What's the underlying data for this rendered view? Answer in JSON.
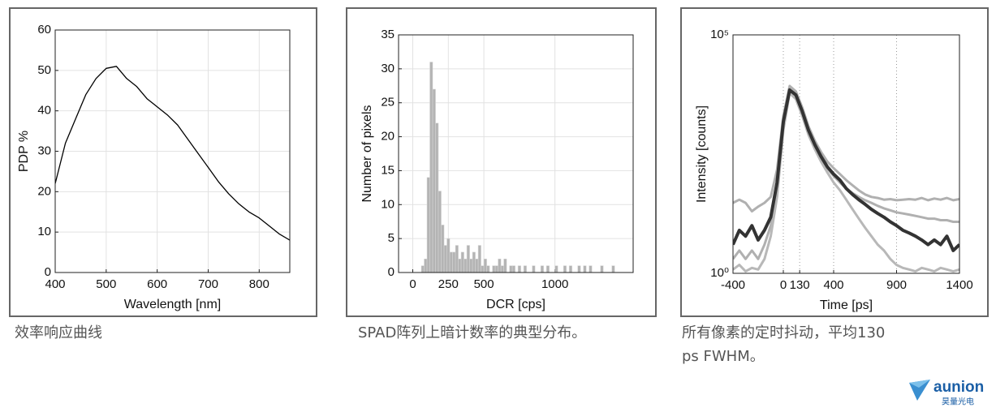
{
  "chart_data": [
    {
      "type": "line",
      "xlabel": "Wavelength [nm]",
      "ylabel": "PDP %",
      "x": [
        400,
        420,
        440,
        460,
        480,
        500,
        520,
        540,
        560,
        580,
        600,
        620,
        640,
        660,
        680,
        700,
        720,
        740,
        760,
        780,
        800,
        820,
        840,
        860
      ],
      "series": [
        {
          "color": "#000000",
          "values": [
            22,
            32,
            38,
            44,
            48,
            50.5,
            51,
            48,
            46,
            43,
            41,
            39,
            36.5,
            33,
            29.5,
            26,
            22.5,
            19.5,
            17,
            15,
            13.5,
            11.5,
            9.5,
            8
          ]
        }
      ],
      "xlim": [
        400,
        860
      ],
      "xticks": [
        400,
        500,
        600,
        700,
        800
      ],
      "ylim": [
        0,
        60
      ],
      "yticks": [
        0,
        10,
        20,
        30,
        40,
        50,
        60
      ],
      "grid": true
    },
    {
      "type": "histogram",
      "xlabel": "DCR [cps]",
      "ylabel": "Number of pixels",
      "color": "#b4b4b4",
      "bins": [
        60,
        80,
        100,
        120,
        140,
        160,
        180,
        200,
        220,
        240,
        260,
        280,
        300,
        320,
        340,
        360,
        380,
        400,
        420,
        440,
        460,
        480,
        500,
        520,
        540,
        560,
        580,
        600,
        620,
        640,
        660,
        680,
        700,
        720,
        740,
        760,
        780,
        800,
        820,
        840,
        860,
        880,
        900,
        920,
        940,
        960,
        980,
        1000,
        1020,
        1040,
        1060,
        1080,
        1100,
        1120,
        1140,
        1160,
        1180,
        1200,
        1220,
        1240,
        1260,
        1280,
        1300,
        1320,
        1340,
        1360,
        1380,
        1400,
        1420
      ],
      "counts": [
        1,
        2,
        14,
        31,
        27,
        22,
        12,
        7,
        4,
        5,
        3,
        3,
        4,
        2,
        3,
        2,
        4,
        2,
        3,
        2,
        4,
        1,
        2,
        1,
        0,
        1,
        1,
        2,
        1,
        2,
        0,
        1,
        1,
        0,
        1,
        0,
        1,
        0,
        0,
        1,
        0,
        0,
        1,
        0,
        1,
        0,
        0,
        1,
        0,
        0,
        1,
        0,
        1,
        0,
        0,
        1,
        0,
        1,
        0,
        1,
        0,
        0,
        0,
        1,
        0,
        0,
        0,
        1
      ],
      "xlim": [
        -100,
        1550
      ],
      "xticks": [
        0,
        250,
        500,
        1000
      ],
      "ylim": [
        0,
        35
      ],
      "yticks": [
        0,
        5,
        10,
        15,
        20,
        25,
        30,
        35
      ],
      "grid": true
    },
    {
      "type": "line",
      "xlabel": "Time [ps]",
      "ylabel": "Intensity [counts]",
      "ylog": true,
      "grid": "dotted",
      "x": [
        -400,
        -350,
        -300,
        -250,
        -200,
        -150,
        -100,
        -50,
        0,
        50,
        100,
        150,
        200,
        250,
        300,
        350,
        400,
        450,
        500,
        550,
        600,
        650,
        700,
        750,
        800,
        850,
        900,
        950,
        1000,
        1050,
        1100,
        1150,
        1200,
        1250,
        1300,
        1350,
        1400
      ],
      "series": [
        {
          "color": "#b0b0b0",
          "values": [
            30,
            35,
            30,
            20,
            25,
            30,
            40,
            150,
            2000,
            8500,
            6500,
            3000,
            1200,
            600,
            350,
            220,
            160,
            120,
            90,
            70,
            55,
            45,
            40,
            38,
            35,
            36,
            34,
            35,
            36,
            35,
            38,
            34,
            37,
            35,
            38,
            34,
            36
          ]
        },
        {
          "color": "#b0b0b0",
          "values": [
            2,
            3,
            2,
            3,
            2,
            4,
            10,
            60,
            1200,
            6500,
            5000,
            2200,
            900,
            450,
            260,
            160,
            110,
            80,
            60,
            48,
            40,
            34,
            30,
            26,
            23,
            21,
            19,
            18,
            17,
            16,
            15,
            14,
            14,
            13,
            13,
            12,
            12
          ]
        },
        {
          "color": "#b8b8b8",
          "values": [
            1.2,
            1.5,
            1.1,
            1.3,
            1.2,
            2,
            6,
            40,
            1000,
            6000,
            4500,
            2000,
            800,
            400,
            220,
            130,
            80,
            55,
            35,
            22,
            14,
            9,
            6,
            4,
            3,
            2,
            1.5,
            1.3,
            1.2,
            1.1,
            1.3,
            1.2,
            1.1,
            1.3,
            1.2,
            1.1,
            1.2
          ]
        },
        {
          "color": "#333333",
          "values": [
            4,
            8,
            6,
            10,
            5,
            8,
            15,
            80,
            1500,
            7000,
            5500,
            2500,
            1000,
            500,
            280,
            170,
            120,
            90,
            60,
            45,
            35,
            28,
            22,
            18,
            15,
            12,
            10,
            8,
            7,
            6,
            5,
            4,
            5,
            4,
            6,
            3,
            4
          ]
        }
      ],
      "xlim": [
        -400,
        1400
      ],
      "xticks": [
        -400,
        0,
        130,
        400,
        900,
        1400
      ],
      "ylim": [
        1,
        100000
      ],
      "yticks": [
        {
          "value": 1,
          "label": "10⁰"
        },
        {
          "value": 100000,
          "label": "10⁵"
        }
      ]
    }
  ],
  "captions": [
    [
      "效率响应曲线"
    ],
    [
      "SPAD阵列上暗计数率的典型分布。"
    ],
    [
      "所有像素的定时抖动，平均130",
      "ps FWHM。"
    ]
  ],
  "logo": {
    "name": "aunion",
    "subtitle": "昊量光电"
  }
}
